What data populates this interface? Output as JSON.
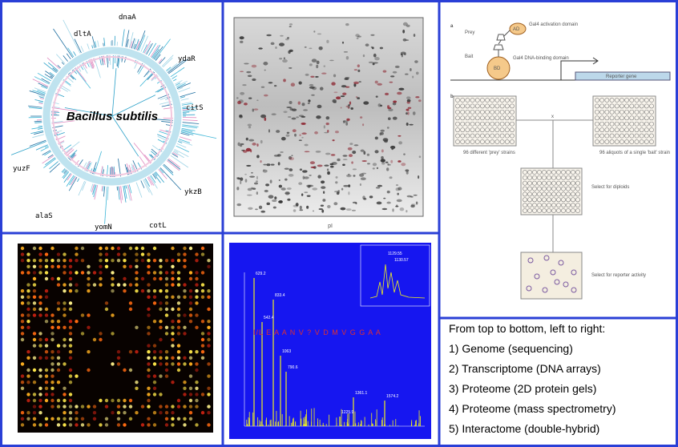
{
  "genome": {
    "title": "Bacillus subtilis",
    "genes": [
      "dltA",
      "dnaA",
      "ydaR",
      "citS",
      "yuzF",
      "ykzB",
      "alaS",
      "yomN",
      "cotL"
    ]
  },
  "gel": {
    "x_label": "pI"
  },
  "two_hybrid": {
    "panel_a": "a",
    "prey": "Prey",
    "ad": "AD",
    "ad_label": "Gal4 activation domain",
    "bait": "Bait",
    "bd": "BD",
    "bd_label": "Gal4 DNA-binding domain",
    "reporter": "Reporter gene",
    "panel_b": "b",
    "prey_strains": "96 different 'prey' strains",
    "bait_strain": "96 aliquots of a single 'bait' strain",
    "cross": "x",
    "diploids": "Select for diploids",
    "activity": "Select for reporter activity"
  },
  "mass_spec": {
    "peaks": [
      "629.2",
      "833.4",
      "542.4",
      "1063",
      "790.6",
      "1361.1",
      "1574.2",
      "1225.9"
    ],
    "sequence": "I/L E A A N V ? V D M V G G A A",
    "inset_peaks": [
      "1129.55",
      "1130.57"
    ]
  },
  "caption": {
    "heading": "From top to bottom, left to right:",
    "items": [
      "1) Genome (sequencing)",
      "2) Transcriptome (DNA arrays)",
      "3) Proteome (2D protein gels)",
      "4) Proteome (mass spectrometry)",
      "5) Interactome (double-hybrid)"
    ]
  }
}
